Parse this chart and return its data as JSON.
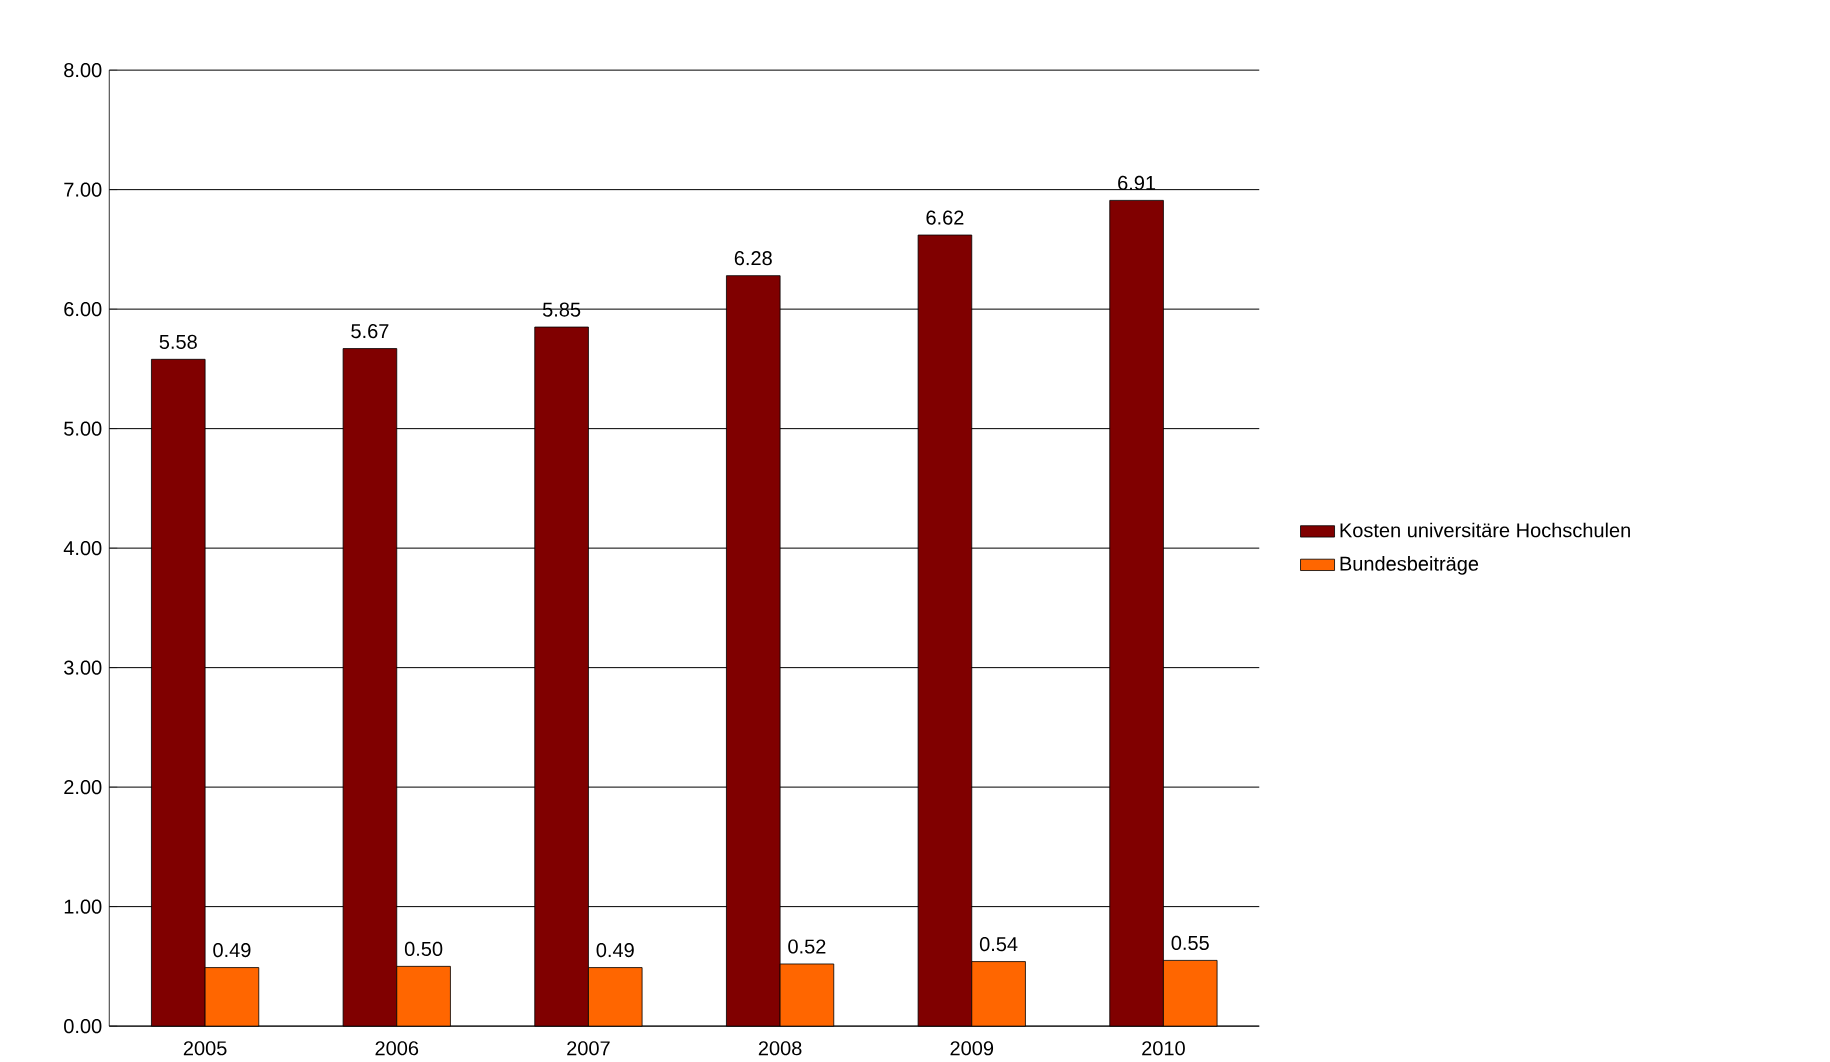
{
  "chart_data": {
    "type": "bar",
    "categories": [
      "2005",
      "2006",
      "2007",
      "2008",
      "2009",
      "2010"
    ],
    "series": [
      {
        "name": "Kosten universitäre Hochschulen",
        "color": "#800000",
        "values": [
          5.58,
          5.67,
          5.85,
          6.28,
          6.62,
          6.91
        ],
        "value_labels": [
          "5.58",
          "5.67",
          "5.85",
          "6.28",
          "6.62",
          "6.91"
        ]
      },
      {
        "name": "Bundesbeiträge",
        "color": "#ff6600",
        "values": [
          0.49,
          0.5,
          0.49,
          0.52,
          0.54,
          0.55
        ],
        "value_labels": [
          "0.49",
          "0.50",
          "0.49",
          "0.52",
          "0.54",
          "0.55"
        ]
      }
    ],
    "ylim": [
      0,
      8
    ],
    "yticks": [
      {
        "value": 0,
        "label": "0.00"
      },
      {
        "value": 1,
        "label": "1.00"
      },
      {
        "value": 2,
        "label": "2.00"
      },
      {
        "value": 3,
        "label": "3.00"
      },
      {
        "value": 4,
        "label": "4.00"
      },
      {
        "value": 5,
        "label": "5.00"
      },
      {
        "value": 6,
        "label": "6.00"
      },
      {
        "value": 7,
        "label": "7.00"
      },
      {
        "value": 8,
        "label": "8.00"
      }
    ],
    "grid": "y",
    "legend": "right"
  }
}
